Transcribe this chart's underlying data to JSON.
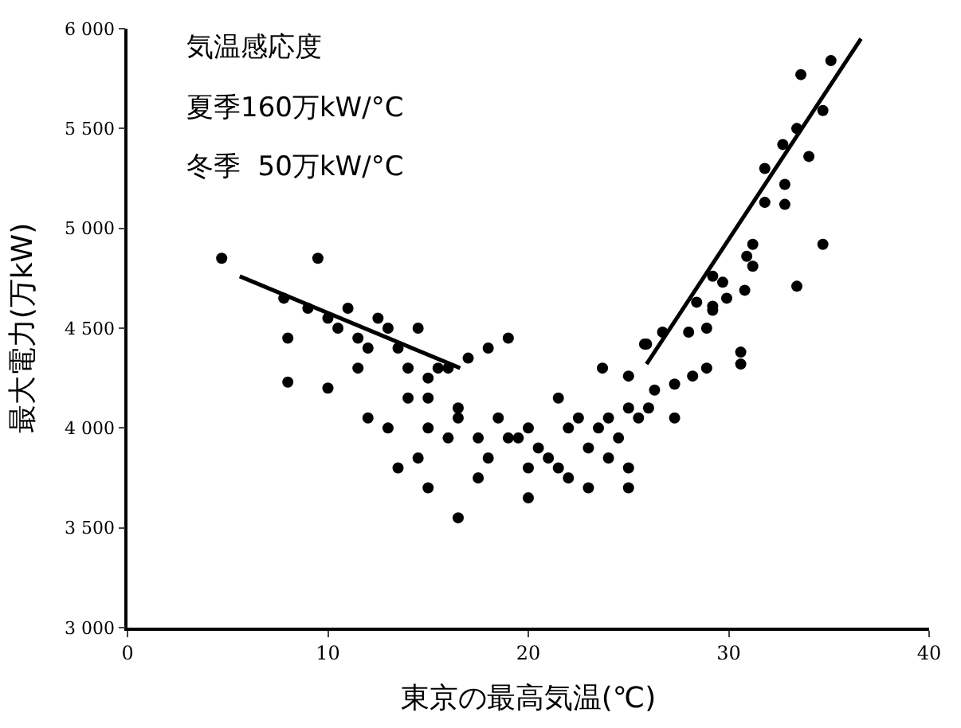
{
  "chart_data": {
    "type": "scatter",
    "xlabel": "東京の最高気温(℃)",
    "ylabel": "最大電力(万kW)",
    "annotations": [
      "気温感応度",
      "夏季160万kW/°C",
      "冬季  50万kW/°C"
    ],
    "xlim": [
      0,
      40
    ],
    "xticks": [
      0,
      10,
      20,
      30,
      40
    ],
    "ylim": [
      3000,
      6000
    ],
    "yticks": [
      {
        "value": 3000,
        "label": "3 000"
      },
      {
        "value": 3500,
        "label": "3 500"
      },
      {
        "value": 4000,
        "label": "4 000"
      },
      {
        "value": 4500,
        "label": "4 500"
      },
      {
        "value": 5000,
        "label": "5 000"
      },
      {
        "value": 5500,
        "label": "5 500"
      },
      {
        "value": 6000,
        "label": "6 000"
      }
    ],
    "marker": "circle",
    "series": [
      {
        "color": "#000000",
        "x": [
          4.7,
          9.5,
          7.8,
          8,
          8,
          9,
          10,
          10.5,
          11,
          11.5,
          12,
          12.5,
          13,
          13.5,
          14,
          14.5,
          15,
          15.5,
          16,
          16.5,
          17,
          13,
          12,
          11.5,
          10,
          14,
          15,
          15,
          16,
          14.5,
          13.5,
          15,
          16.5,
          17.5,
          18,
          18.5,
          18,
          19,
          19,
          20,
          20,
          20.5,
          21,
          21.5,
          22,
          22,
          23,
          23,
          23.5,
          24,
          24,
          24.5,
          25,
          25,
          25.5,
          26,
          25,
          21.5,
          22.5,
          20,
          19.5,
          17.5,
          16.5,
          23.7,
          25,
          25.9,
          26.3,
          27.3,
          27.3,
          28,
          28.2,
          28.9,
          30.6,
          30.6,
          28.9,
          29.2,
          29.9,
          30.8,
          33.4,
          35.1,
          33.6,
          34.7,
          33.4,
          32.7,
          34,
          31.8,
          32.8,
          31.8,
          32.8,
          34.7,
          31.2,
          30.9,
          31.2,
          29.7,
          29.2,
          28.4,
          29.2,
          26.7,
          25.8
        ],
        "values": [
          4850,
          4850,
          4650,
          4450,
          4230,
          4600,
          4550,
          4500,
          4600,
          4450,
          4400,
          4550,
          4500,
          4400,
          4300,
          4500,
          4250,
          4300,
          4300,
          4100,
          4350,
          4000,
          4050,
          4300,
          4200,
          4150,
          4150,
          4000,
          3950,
          3850,
          3800,
          3700,
          3550,
          3750,
          3850,
          4050,
          4400,
          4450,
          3950,
          3800,
          3650,
          3900,
          3850,
          3800,
          4000,
          3750,
          3700,
          3900,
          4000,
          4050,
          3850,
          3950,
          4100,
          3700,
          4050,
          4100,
          3800,
          4150,
          4050,
          4000,
          3950,
          3950,
          4050,
          4300,
          4260,
          4420,
          4190,
          4220,
          4050,
          4480,
          4260,
          4300,
          4380,
          4320,
          4500,
          4590,
          4650,
          4690,
          4710,
          5840,
          5770,
          5590,
          5500,
          5420,
          5360,
          5300,
          5220,
          5130,
          5120,
          4920,
          4920,
          4860,
          4810,
          4730,
          4760,
          4630,
          4610,
          4480,
          4420
        ]
      },
      {
        "type": "line",
        "color": "#000000",
        "marker": "none",
        "x": [
          5.6,
          16.6
        ],
        "values": [
          4760,
          4300
        ]
      },
      {
        "type": "line",
        "color": "#000000",
        "marker": "none",
        "x": [
          25.9,
          36.6
        ],
        "values": [
          4320,
          5950
        ]
      }
    ]
  }
}
